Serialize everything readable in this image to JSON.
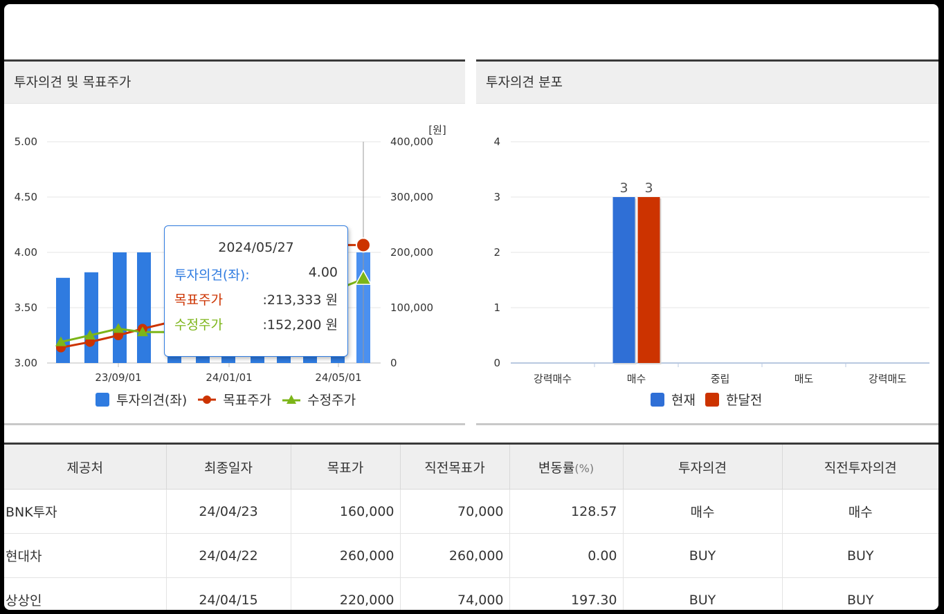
{
  "left_panel": {
    "title": "투자의견 및 목표주가",
    "unit_label": "[원]",
    "tooltip": {
      "date": "2024/05/27",
      "rows": [
        {
          "label": "투자의견(좌)",
          "sep": ":",
          "value": "4.00",
          "color": "#2f7be0"
        },
        {
          "label": "목표주가",
          "sep": "",
          "value": ":213,333 원",
          "color": "#cc3300"
        },
        {
          "label": "수정주가",
          "sep": "",
          "value": ":152,200 원",
          "color": "#7cb518"
        }
      ]
    },
    "legend": [
      "투자의견(좌)",
      "목표주가",
      "수정주가"
    ]
  },
  "right_panel": {
    "title": "투자의견 분포",
    "legend": [
      "현재",
      "한달전"
    ]
  },
  "chart_data": [
    {
      "type": "bar",
      "title": "투자의견 및 목표주가",
      "y_left_ticks": [
        "3.00",
        "3.50",
        "4.00",
        "4.50",
        "5.00"
      ],
      "y_right_ticks": [
        "0",
        "100,000",
        "200,000",
        "300,000",
        "400,000"
      ],
      "y_left_range": [
        3.0,
        5.0
      ],
      "y_right_range": [
        0,
        400000
      ],
      "x_ticks": [
        "23/09/01",
        "24/01/01",
        "24/05/01"
      ],
      "series": [
        {
          "name": "투자의견(좌)",
          "type": "bar",
          "axis": "left",
          "values": [
            3.77,
            3.82,
            4.0,
            4.0,
            4.0,
            4.0,
            4.0,
            4.0,
            4.0,
            4.0,
            4.0,
            4.0
          ]
        },
        {
          "name": "목표주가",
          "type": "line",
          "axis": "right",
          "values": [
            28000,
            38000,
            50000,
            62000,
            75000,
            null,
            null,
            null,
            null,
            null,
            null,
            213333
          ]
        },
        {
          "name": "수정주가",
          "type": "line",
          "axis": "right",
          "values": [
            38000,
            50000,
            62000,
            56000,
            56000,
            null,
            null,
            null,
            null,
            null,
            null,
            152200
          ]
        }
      ],
      "colors": {
        "bar": "#2f7be0",
        "bar_highlight": "#4a90f0",
        "target": "#cc3300",
        "price": "#7cb518"
      }
    },
    {
      "type": "bar",
      "title": "투자의견 분포",
      "categories": [
        "강력매수",
        "매수",
        "중립",
        "매도",
        "강력매도"
      ],
      "y_ticks": [
        "0",
        "1",
        "2",
        "3",
        "4"
      ],
      "ylim": [
        0,
        4
      ],
      "series": [
        {
          "name": "현재",
          "values": [
            0,
            3,
            0,
            0,
            0
          ],
          "color": "#2f6fd6"
        },
        {
          "name": "한달전",
          "values": [
            0,
            3,
            0,
            0,
            0
          ],
          "color": "#cc3300"
        }
      ],
      "data_labels": [
        "3",
        "3"
      ]
    }
  ],
  "table": {
    "headers": [
      "제공처",
      "최종일자",
      "목표가",
      "직전목표가",
      "변동률",
      "(%)",
      "투자의견",
      "직전투자의견"
    ],
    "rows": [
      {
        "provider": "BNK투자",
        "date": "24/04/23",
        "target": "160,000",
        "prev_target": "70,000",
        "change": "128.57",
        "opinion": "매수",
        "prev_opinion": "매수"
      },
      {
        "provider": "현대차",
        "date": "24/04/22",
        "target": "260,000",
        "prev_target": "260,000",
        "change": "0.00",
        "opinion": "BUY",
        "prev_opinion": "BUY"
      },
      {
        "provider": "상상인",
        "date": "24/04/15",
        "target": "220,000",
        "prev_target": "74,000",
        "change": "197.30",
        "opinion": "BUY",
        "prev_opinion": "BUY"
      }
    ]
  }
}
